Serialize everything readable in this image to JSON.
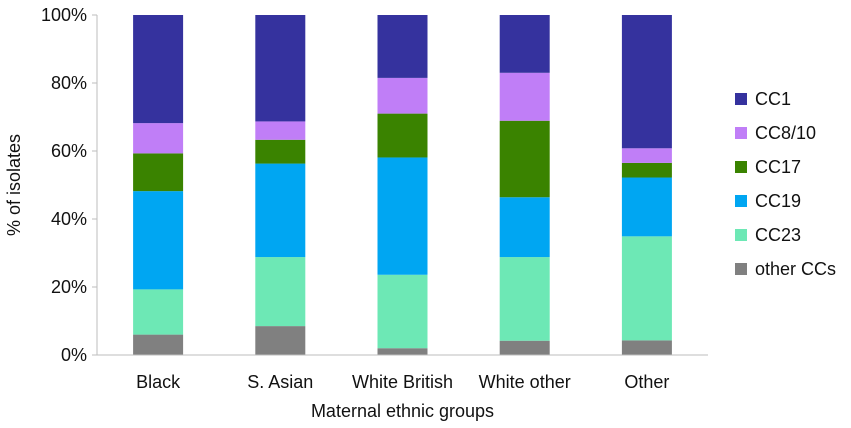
{
  "chart_data": {
    "type": "bar",
    "stacked": true,
    "normalized": true,
    "categories": [
      "Black",
      "S. Asian",
      "White British",
      "White other",
      "Other"
    ],
    "series": [
      {
        "name": "other CCs",
        "color": "#808080",
        "values": [
          6,
          8.5,
          2,
          4.2,
          4.3
        ]
      },
      {
        "name": "CC23",
        "color": "#6DE8B5",
        "values": [
          13.3,
          20.3,
          21.6,
          24.6,
          30.6
        ]
      },
      {
        "name": "CC19",
        "color": "#00A6F2",
        "values": [
          28.9,
          27.5,
          34.5,
          17.6,
          17.3
        ]
      },
      {
        "name": "CC17",
        "color": "#3A8300",
        "values": [
          11.1,
          7,
          12.9,
          22.5,
          4.3
        ]
      },
      {
        "name": "CC8/10",
        "color": "#C07EF7",
        "values": [
          8.9,
          5.4,
          10.5,
          14.1,
          4.3
        ]
      },
      {
        "name": "CC1",
        "color": "#35329E",
        "values": [
          31.8,
          31.3,
          18.5,
          17,
          39.2
        ]
      }
    ],
    "xlabel": "Maternal ethnic groups",
    "ylabel": "% of isolates",
    "ylim": [
      0,
      100
    ],
    "yticks": [
      "0%",
      "20%",
      "40%",
      "60%",
      "80%",
      "100%"
    ],
    "grid": false,
    "legend_position": "right"
  }
}
